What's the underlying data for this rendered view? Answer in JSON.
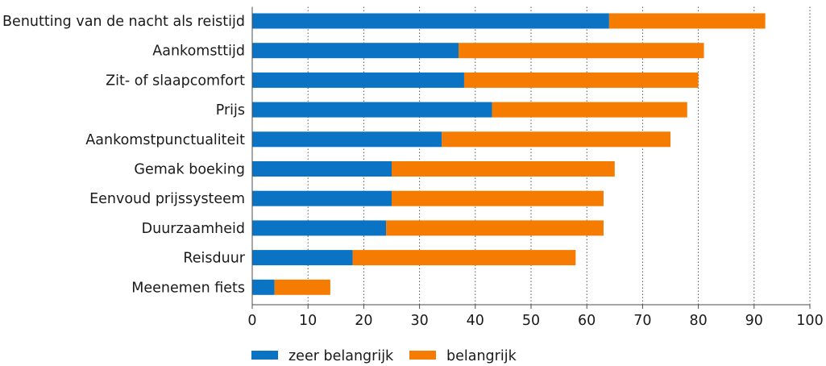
{
  "chart_data": {
    "type": "bar",
    "orientation": "horizontal",
    "stacked": true,
    "title": "",
    "xlabel": "",
    "ylabel": "",
    "xlim": [
      0,
      100
    ],
    "xticks": [
      0,
      10,
      20,
      30,
      40,
      50,
      60,
      70,
      80,
      90,
      100
    ],
    "grid": "vertical dotted",
    "legend_position": "bottom",
    "categories": [
      "Benutting van de nacht als reistijd",
      "Aankomsttijd",
      "Zit- of slaapcomfort",
      "Prijs",
      "Aankomstpunctualiteit",
      "Gemak boeking",
      "Eenvoud prijssysteem",
      "Duurzaamheid",
      "Reisduur",
      "Meenemen fiets"
    ],
    "series": [
      {
        "name": "zeer belangrijk",
        "color": "#0a73c4",
        "values": [
          64,
          37,
          38,
          43,
          34,
          25,
          25,
          24,
          18,
          4
        ]
      },
      {
        "name": "belangrijk",
        "color": "#f57c00",
        "values": [
          28,
          44,
          42,
          35,
          41,
          40,
          38,
          39,
          40,
          10
        ]
      }
    ]
  }
}
